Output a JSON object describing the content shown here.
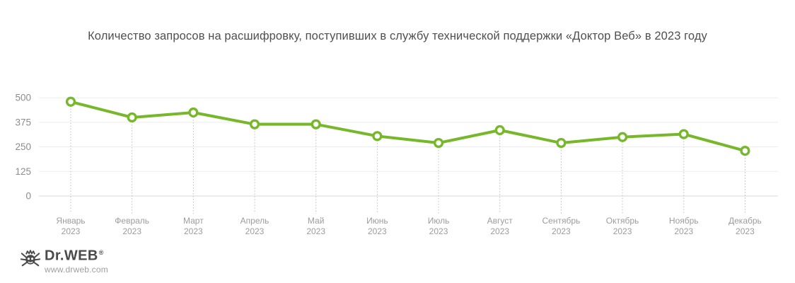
{
  "title": "Количество запросов на расшифровку, поступивших в службу технической поддержки «Доктор Веб» в 2023 году",
  "chart_data": {
    "type": "line",
    "categories": [
      "Январь",
      "Февраль",
      "Март",
      "Апрель",
      "Май",
      "Июнь",
      "Июль",
      "Август",
      "Сентябрь",
      "Октябрь",
      "Ноябрь",
      "Декабрь"
    ],
    "category_year": "2023",
    "values": [
      480,
      400,
      425,
      365,
      365,
      305,
      270,
      335,
      270,
      300,
      315,
      230
    ],
    "ylim": [
      0,
      500
    ],
    "yticks": [
      0,
      125,
      250,
      375,
      500
    ],
    "grid": "horizontal",
    "legend": "none",
    "line_color": "#76b82a",
    "marker_style": "open-circle",
    "marker_fill": "#ffffff",
    "grid_color": "#ececec",
    "axis_line_color": "#d8d8d8",
    "tick_label_color": "#8c8c8c",
    "month_label_color": "#9c9c9c",
    "guide_line_color": "#bdbdbd"
  },
  "footer": {
    "brand": "Dr.WEB",
    "registered_mark": "®",
    "website": "www.drweb.com"
  }
}
